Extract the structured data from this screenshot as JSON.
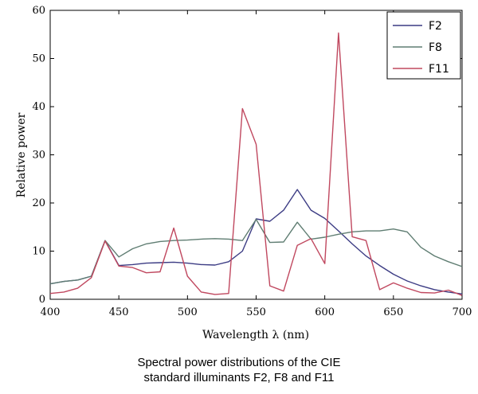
{
  "caption": {
    "line1": "Spectral power distributions of the CIE",
    "line2": "standard illuminants F2, F8 and F11"
  },
  "chart_data": {
    "type": "line",
    "title": "",
    "xlabel": "Wavelength λ (nm)",
    "ylabel": "Relative power",
    "xlim": [
      400,
      700
    ],
    "ylim": [
      0,
      60
    ],
    "xticks": [
      400,
      450,
      500,
      550,
      600,
      650,
      700
    ],
    "yticks": [
      0,
      10,
      20,
      30,
      40,
      50,
      60
    ],
    "grid": false,
    "legend_position": "top-right",
    "series": [
      {
        "name": "F2",
        "color": "#3c3c84",
        "x": [
          400,
          410,
          420,
          430,
          440,
          450,
          460,
          470,
          480,
          490,
          500,
          510,
          520,
          530,
          540,
          550,
          560,
          570,
          580,
          590,
          600,
          610,
          620,
          630,
          640,
          650,
          660,
          670,
          680,
          690,
          700
        ],
        "y": [
          3.2,
          3.7,
          4.0,
          4.8,
          12.2,
          7.0,
          7.2,
          7.5,
          7.6,
          7.7,
          7.5,
          7.2,
          7.1,
          7.8,
          10.0,
          16.7,
          16.2,
          18.5,
          22.8,
          18.5,
          16.8,
          14.2,
          11.5,
          9.0,
          7.0,
          5.2,
          3.8,
          2.8,
          2.0,
          1.5,
          1.1
        ]
      },
      {
        "name": "F8",
        "color": "#5f7d72",
        "x": [
          400,
          410,
          420,
          430,
          440,
          450,
          460,
          470,
          480,
          490,
          500,
          510,
          520,
          530,
          540,
          550,
          560,
          570,
          580,
          590,
          600,
          610,
          620,
          630,
          640,
          650,
          660,
          670,
          680,
          690,
          700
        ],
        "y": [
          3.2,
          3.7,
          4.0,
          4.8,
          12.2,
          8.8,
          10.5,
          11.5,
          12.0,
          12.2,
          12.3,
          12.5,
          12.6,
          12.5,
          12.2,
          16.6,
          11.8,
          11.9,
          16.0,
          12.5,
          12.9,
          13.5,
          14.0,
          14.2,
          14.2,
          14.6,
          14.0,
          10.8,
          9.0,
          7.8,
          6.8
        ]
      },
      {
        "name": "F11",
        "color": "#c0485f",
        "x": [
          400,
          410,
          420,
          430,
          440,
          450,
          460,
          470,
          480,
          490,
          500,
          510,
          520,
          530,
          540,
          550,
          560,
          570,
          580,
          590,
          600,
          610,
          620,
          630,
          640,
          650,
          660,
          670,
          680,
          690,
          700
        ],
        "y": [
          1.2,
          1.5,
          2.3,
          4.5,
          12.1,
          6.9,
          6.6,
          5.5,
          5.7,
          14.8,
          4.8,
          1.5,
          1.0,
          1.2,
          39.6,
          32.2,
          2.8,
          1.7,
          11.2,
          12.6,
          7.4,
          55.3,
          13.0,
          12.2,
          2.0,
          3.4,
          2.3,
          1.4,
          1.3,
          1.9,
          0.8
        ]
      }
    ]
  }
}
